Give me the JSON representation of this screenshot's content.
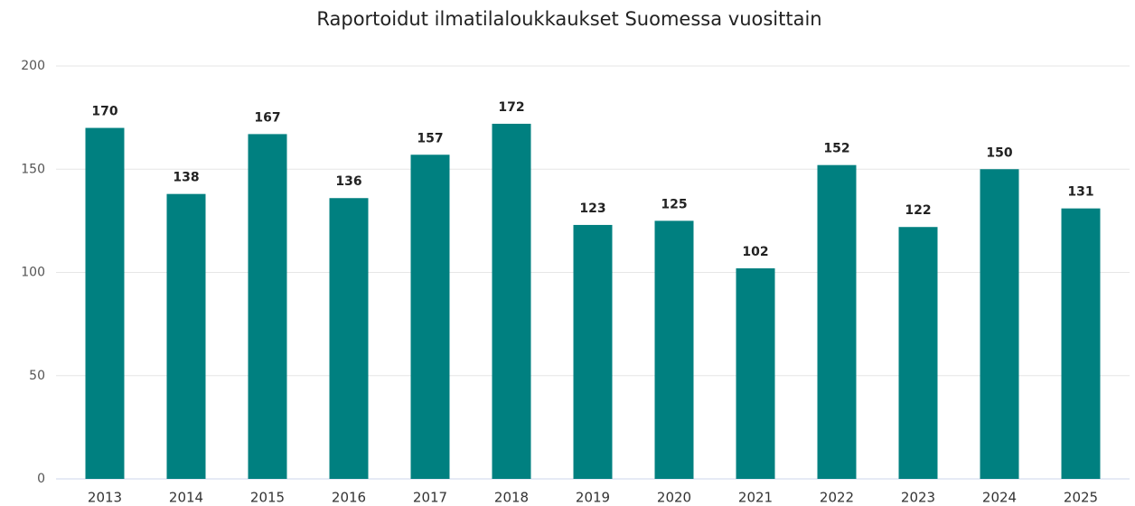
{
  "chart_data": {
    "type": "bar",
    "title": "Raportoidut ilmatilaloukkaukset Suomessa vuosittain",
    "categories": [
      "2013",
      "2014",
      "2015",
      "2016",
      "2017",
      "2018",
      "2019",
      "2020",
      "2021",
      "2022",
      "2023",
      "2024",
      "2025"
    ],
    "values": [
      170,
      138,
      167,
      136,
      157,
      172,
      123,
      125,
      102,
      152,
      122,
      150,
      131
    ],
    "color": "#008080",
    "ylim": [
      0,
      200
    ],
    "yticks": [
      0,
      50,
      100,
      150,
      200
    ],
    "grid": true
  }
}
